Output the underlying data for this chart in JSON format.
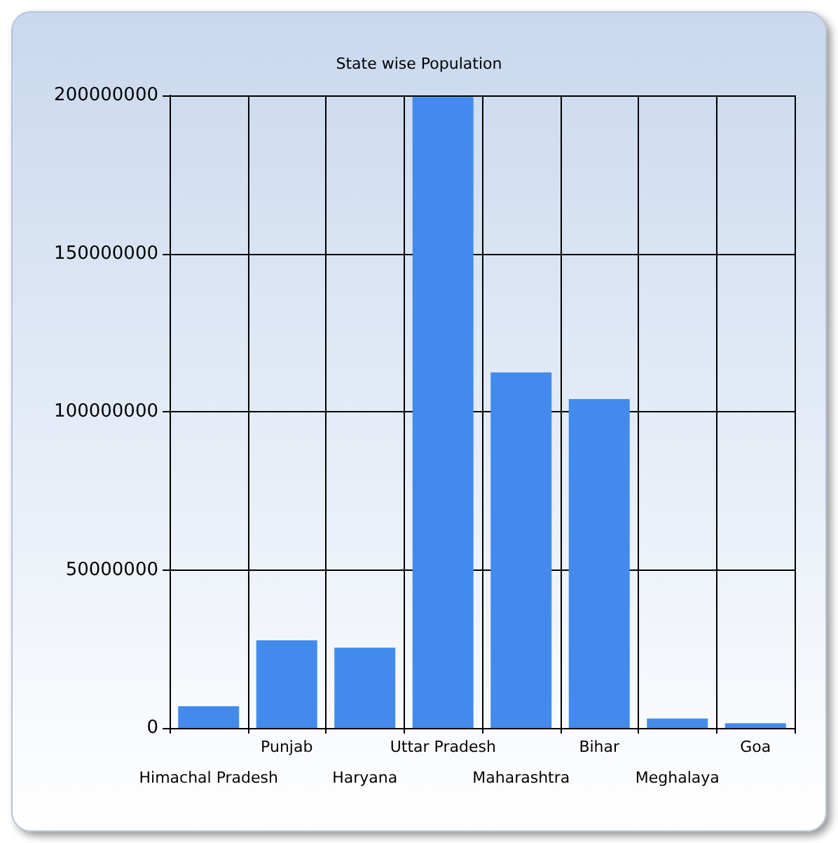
{
  "chart_data": {
    "type": "bar",
    "title": "State wise Population",
    "categories": [
      "Himachal Pradesh",
      "Punjab",
      "Haryana",
      "Uttar Pradesh",
      "Maharashtra",
      "Bihar",
      "Meghalaya",
      "Goa"
    ],
    "values": [
      6900000,
      27700000,
      25400000,
      199500000,
      112400000,
      104000000,
      3000000,
      1500000
    ],
    "color": "#428bed",
    "ylim": [
      0,
      200000000
    ],
    "yticks": [
      0,
      50000000,
      100000000,
      150000000,
      200000000
    ],
    "grid": true
  }
}
